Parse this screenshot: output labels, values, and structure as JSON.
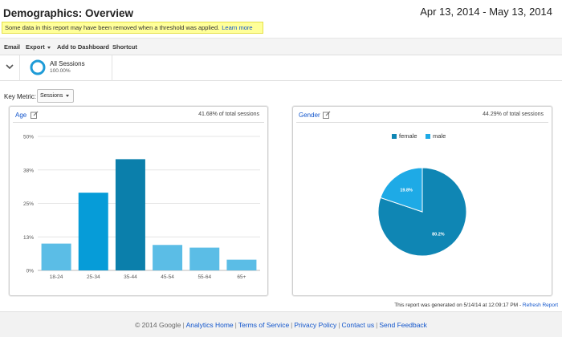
{
  "page": {
    "title": "Demographics: Overview",
    "date_range": "Apr 13, 2014 - May 13, 2014"
  },
  "notice": {
    "text": "Some data in this report may have been removed when a threshold was applied.",
    "link": "Learn more"
  },
  "toolbar": {
    "email": "Email",
    "export": "Export",
    "add_to_dashboard": "Add to Dashboard",
    "shortcut": "Shortcut"
  },
  "segment": {
    "name": "All Sessions",
    "percent": "100.00%",
    "color": "#1e9bd7"
  },
  "key_metric": {
    "label": "Key Metric:",
    "selected": "Sessions"
  },
  "age_panel": {
    "title": "Age",
    "share": "41.68% of total sessions"
  },
  "gender_panel": {
    "title": "Gender",
    "share": "44.29% of total sessions"
  },
  "chart_data": [
    {
      "type": "bar",
      "title": "Age",
      "categories": [
        "18-24",
        "25-34",
        "35-44",
        "45-54",
        "55-64",
        "65+"
      ],
      "values": [
        10,
        29,
        41.5,
        9.5,
        8.5,
        4
      ],
      "y_ticks": [
        "50%",
        "38%",
        "25%",
        "13%",
        "0%"
      ],
      "ylim": [
        0,
        50
      ],
      "highlight_index": 2,
      "colors": {
        "light": "#5bbde6",
        "mid": "#069cd8",
        "dark": "#0b7fab"
      }
    },
    {
      "type": "pie",
      "title": "Gender",
      "labels": [
        "female",
        "male"
      ],
      "values": [
        80.2,
        19.8
      ],
      "value_labels": [
        "80.2%",
        "19.8%"
      ],
      "colors": [
        "#0f86b4",
        "#1eaae6"
      ]
    }
  ],
  "footer": {
    "generated_text": "This report was generated on 5/14/14 at 12:09:17 PM -",
    "refresh": "Refresh Report",
    "copyright": "© 2014 Google",
    "links": [
      "Analytics Home",
      "Terms of Service",
      "Privacy Policy",
      "Contact us",
      "Send Feedback"
    ]
  }
}
